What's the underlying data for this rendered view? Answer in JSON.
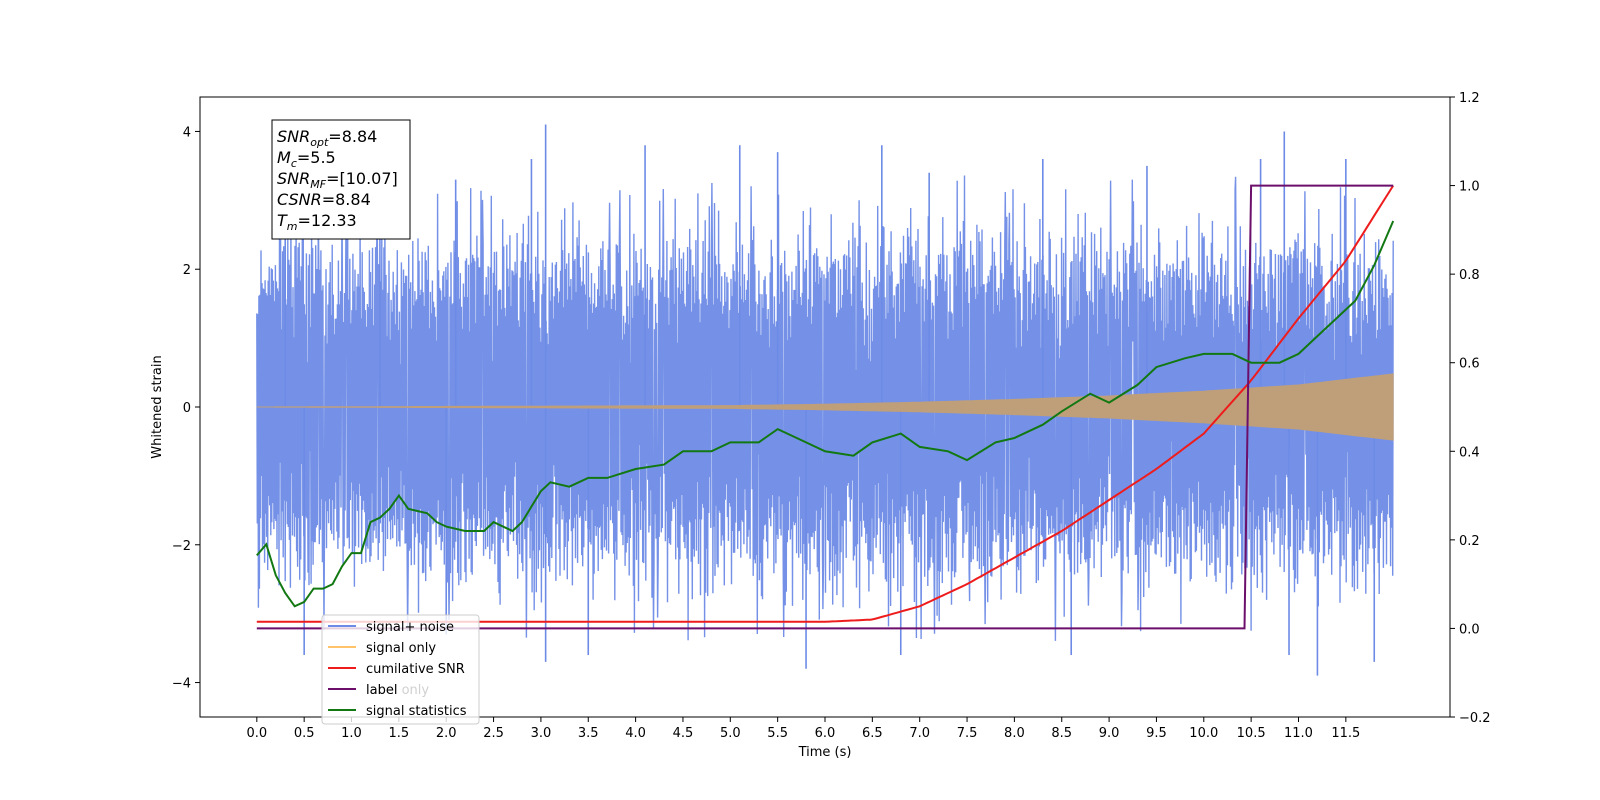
{
  "chart_data": {
    "type": "line",
    "xlabel": "Time (s)",
    "ylabel_left": "Whitened strain",
    "ylabel_right": "",
    "xlim": [
      -0.6,
      12.6
    ],
    "ylim_left": [
      -4.5,
      4.5
    ],
    "ylim_right": [
      -0.2,
      1.2
    ],
    "x_ticks": [
      0.0,
      0.5,
      1.0,
      1.5,
      2.0,
      2.5,
      3.0,
      3.5,
      4.0,
      4.5,
      5.0,
      5.5,
      6.0,
      6.5,
      7.0,
      7.5,
      8.0,
      8.5,
      9.0,
      9.5,
      10.0,
      10.5,
      11.0,
      11.5
    ],
    "x_tick_labels": [
      "0.0",
      "0.5",
      "1.0",
      "1.5",
      "2.0",
      "2.5",
      "3.0",
      "3.5",
      "4.0",
      "4.5",
      "5.0",
      "5.5",
      "6.0",
      "6.5",
      "7.0",
      "7.5",
      "8.0",
      "8.5",
      "9.0",
      "9.5",
      "10.0",
      "10.5",
      "11.0",
      "11.5"
    ],
    "y_left_ticks": [
      -4,
      -2,
      0,
      2,
      4
    ],
    "y_left_tick_labels": [
      "−4",
      "−2",
      "0",
      "2",
      "4"
    ],
    "y_right_ticks": [
      -0.2,
      0.0,
      0.2,
      0.4,
      0.6,
      0.8,
      1.0,
      1.2
    ],
    "y_right_tick_labels": [
      "−0.2",
      "0.0",
      "0.2",
      "0.4",
      "0.6",
      "0.8",
      "1.0",
      "1.2"
    ],
    "grid": false,
    "legend_position": "lower-left",
    "series": [
      {
        "name": "signal+ noise",
        "axis": "left",
        "color": "#6d8be6",
        "x_range": [
          0.0,
          12.0
        ],
        "envelope_upper": [
          [
            0.0,
            2.3
          ],
          [
            3.0,
            2.4
          ],
          [
            6.0,
            2.4
          ],
          [
            9.0,
            2.4
          ],
          [
            12.0,
            2.4
          ]
        ],
        "envelope_lower": [
          [
            0.0,
            -2.3
          ],
          [
            3.0,
            -2.4
          ],
          [
            6.0,
            -2.4
          ],
          [
            9.0,
            -2.4
          ],
          [
            12.0,
            -2.4
          ]
        ],
        "peaks": [
          [
            0.3,
            3.4
          ],
          [
            1.3,
            3.5
          ],
          [
            2.1,
            3.3
          ],
          [
            2.9,
            3.6
          ],
          [
            3.05,
            4.1
          ],
          [
            4.1,
            3.8
          ],
          [
            5.1,
            3.8
          ],
          [
            5.5,
            3.7
          ],
          [
            6.6,
            3.8
          ],
          [
            7.1,
            3.4
          ],
          [
            8.3,
            3.6
          ],
          [
            9.4,
            3.5
          ],
          [
            10.6,
            3.6
          ],
          [
            10.85,
            4.0
          ],
          [
            11.5,
            3.6
          ],
          [
            0.5,
            -3.6
          ],
          [
            2.0,
            -3.3
          ],
          [
            3.05,
            -3.7
          ],
          [
            3.5,
            -3.6
          ],
          [
            5.8,
            -3.8
          ],
          [
            6.8,
            -3.6
          ],
          [
            8.6,
            -3.6
          ],
          [
            10.9,
            -3.6
          ],
          [
            11.2,
            -3.9
          ],
          [
            11.8,
            -3.7
          ]
        ]
      },
      {
        "name": "signal only",
        "axis": "left",
        "color": "#bf9f7a",
        "x_range": [
          0.0,
          12.0
        ],
        "amplitude": [
          [
            0.0,
            0.0
          ],
          [
            5.0,
            0.02
          ],
          [
            6.0,
            0.04
          ],
          [
            7.0,
            0.07
          ],
          [
            8.0,
            0.11
          ],
          [
            9.0,
            0.16
          ],
          [
            10.0,
            0.23
          ],
          [
            11.0,
            0.32
          ],
          [
            12.0,
            0.48
          ]
        ]
      },
      {
        "name": "cumilative SNR",
        "axis": "right",
        "color": "#ee1c1c",
        "points": [
          [
            0.0,
            0.015
          ],
          [
            6.0,
            0.015
          ],
          [
            6.5,
            0.02
          ],
          [
            7.0,
            0.05
          ],
          [
            7.5,
            0.1
          ],
          [
            8.0,
            0.16
          ],
          [
            8.5,
            0.22
          ],
          [
            9.0,
            0.29
          ],
          [
            9.5,
            0.36
          ],
          [
            10.0,
            0.44
          ],
          [
            10.5,
            0.56
          ],
          [
            11.0,
            0.7
          ],
          [
            11.5,
            0.83
          ],
          [
            12.0,
            1.0
          ]
        ]
      },
      {
        "name": "label",
        "axis": "right",
        "color": "#6b0f6b",
        "points": [
          [
            0.0,
            0.0
          ],
          [
            10.43,
            0.0
          ],
          [
            10.5,
            1.0
          ],
          [
            12.0,
            1.0
          ]
        ]
      },
      {
        "name": "signal statistics",
        "axis": "right",
        "color": "#127812",
        "points": [
          [
            0.0,
            0.165
          ],
          [
            0.1,
            0.19
          ],
          [
            0.2,
            0.12
          ],
          [
            0.3,
            0.08
          ],
          [
            0.4,
            0.05
          ],
          [
            0.5,
            0.06
          ],
          [
            0.6,
            0.09
          ],
          [
            0.7,
            0.09
          ],
          [
            0.8,
            0.1
          ],
          [
            0.9,
            0.14
          ],
          [
            1.0,
            0.17
          ],
          [
            1.1,
            0.17
          ],
          [
            1.2,
            0.24
          ],
          [
            1.3,
            0.25
          ],
          [
            1.4,
            0.27
          ],
          [
            1.5,
            0.3
          ],
          [
            1.6,
            0.27
          ],
          [
            1.8,
            0.26
          ],
          [
            1.9,
            0.24
          ],
          [
            2.0,
            0.23
          ],
          [
            2.2,
            0.22
          ],
          [
            2.4,
            0.22
          ],
          [
            2.5,
            0.24
          ],
          [
            2.7,
            0.22
          ],
          [
            2.8,
            0.24
          ],
          [
            3.0,
            0.31
          ],
          [
            3.1,
            0.33
          ],
          [
            3.3,
            0.32
          ],
          [
            3.5,
            0.34
          ],
          [
            3.7,
            0.34
          ],
          [
            4.0,
            0.36
          ],
          [
            4.3,
            0.37
          ],
          [
            4.5,
            0.4
          ],
          [
            4.8,
            0.4
          ],
          [
            5.0,
            0.42
          ],
          [
            5.3,
            0.42
          ],
          [
            5.5,
            0.45
          ],
          [
            5.8,
            0.42
          ],
          [
            6.0,
            0.4
          ],
          [
            6.3,
            0.39
          ],
          [
            6.5,
            0.42
          ],
          [
            6.8,
            0.44
          ],
          [
            7.0,
            0.41
          ],
          [
            7.3,
            0.4
          ],
          [
            7.5,
            0.38
          ],
          [
            7.8,
            0.42
          ],
          [
            8.0,
            0.43
          ],
          [
            8.3,
            0.46
          ],
          [
            8.5,
            0.49
          ],
          [
            8.8,
            0.53
          ],
          [
            9.0,
            0.51
          ],
          [
            9.3,
            0.55
          ],
          [
            9.5,
            0.59
          ],
          [
            9.8,
            0.61
          ],
          [
            10.0,
            0.62
          ],
          [
            10.3,
            0.62
          ],
          [
            10.5,
            0.6
          ],
          [
            10.8,
            0.6
          ],
          [
            11.0,
            0.62
          ],
          [
            11.2,
            0.66
          ],
          [
            11.4,
            0.7
          ],
          [
            11.6,
            0.74
          ],
          [
            11.8,
            0.82
          ],
          [
            12.0,
            0.92
          ]
        ]
      }
    ],
    "legend_entries": [
      {
        "label": "signal+ noise",
        "color": "#6d8be6"
      },
      {
        "label": "signal only",
        "color": "#ffc36a"
      },
      {
        "label": "cumilative SNR",
        "color": "#ee1c1c"
      },
      {
        "label": "label",
        "color": "#6b0f6b"
      },
      {
        "label": "signal statistics",
        "color": "#127812"
      }
    ],
    "ghost_legend_text": "label only",
    "info_box": [
      {
        "sym": "SNR",
        "sub": "opt",
        "value": "=8.84"
      },
      {
        "sym": "M",
        "sub": "c",
        "value": "=5.5"
      },
      {
        "sym": "SNR",
        "sub": "MF",
        "value": "=[10.07]"
      },
      {
        "sym": "CSNR",
        "sub": "",
        "value": "=8.84"
      },
      {
        "sym": "T",
        "sub": "m",
        "value": "=12.33"
      }
    ]
  }
}
